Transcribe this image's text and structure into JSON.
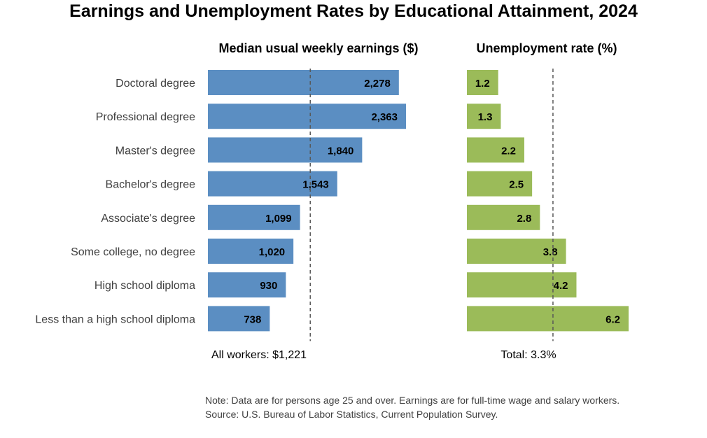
{
  "title": "Earnings and Unemployment Rates by Educational Attainment, 2024",
  "note_lines": [
    "Note: Data are for persons age 25 and over. Earnings are for full-time wage and salary workers.",
    "Source: U.S. Bureau of Labor Statistics, Current Population Survey."
  ],
  "colors": {
    "earnings": "#5b8ec2",
    "unemployment": "#9bbb59",
    "reference_line": "#595959"
  },
  "chart_data": [
    {
      "type": "bar",
      "orientation": "horizontal",
      "title": "Median usual weekly earnings ($)",
      "categories": [
        "Doctoral degree",
        "Professional degree",
        "Master's degree",
        "Bachelor's degree",
        "Associate's degree",
        "Some college, no degree",
        "High school diploma",
        "Less than a high school diploma"
      ],
      "values": [
        2278,
        2363,
        1840,
        1543,
        1099,
        1020,
        930,
        738
      ],
      "value_labels": [
        "2,278",
        "2,363",
        "1,840",
        "1,543",
        "1,099",
        "1,020",
        "930",
        "738"
      ],
      "reference": {
        "value": 1221,
        "label": "All workers: $1,221",
        "style": "dashed"
      },
      "xlim": [
        0,
        2363
      ],
      "grid": false
    },
    {
      "type": "bar",
      "orientation": "horizontal",
      "title": "Unemployment rate (%)",
      "categories": [
        "Doctoral degree",
        "Professional degree",
        "Master's degree",
        "Bachelor's degree",
        "Associate's degree",
        "Some college, no degree",
        "High school diploma",
        "Less than a high school diploma"
      ],
      "values": [
        1.2,
        1.3,
        2.2,
        2.5,
        2.8,
        3.8,
        4.2,
        6.2
      ],
      "value_labels": [
        "1.2",
        "1.3",
        "2.2",
        "2.5",
        "2.8",
        "3.8",
        "4.2",
        "6.2"
      ],
      "reference": {
        "value": 3.3,
        "label": "Total: 3.3%",
        "style": "dashed"
      },
      "xlim": [
        0,
        6.2
      ],
      "grid": false
    }
  ]
}
